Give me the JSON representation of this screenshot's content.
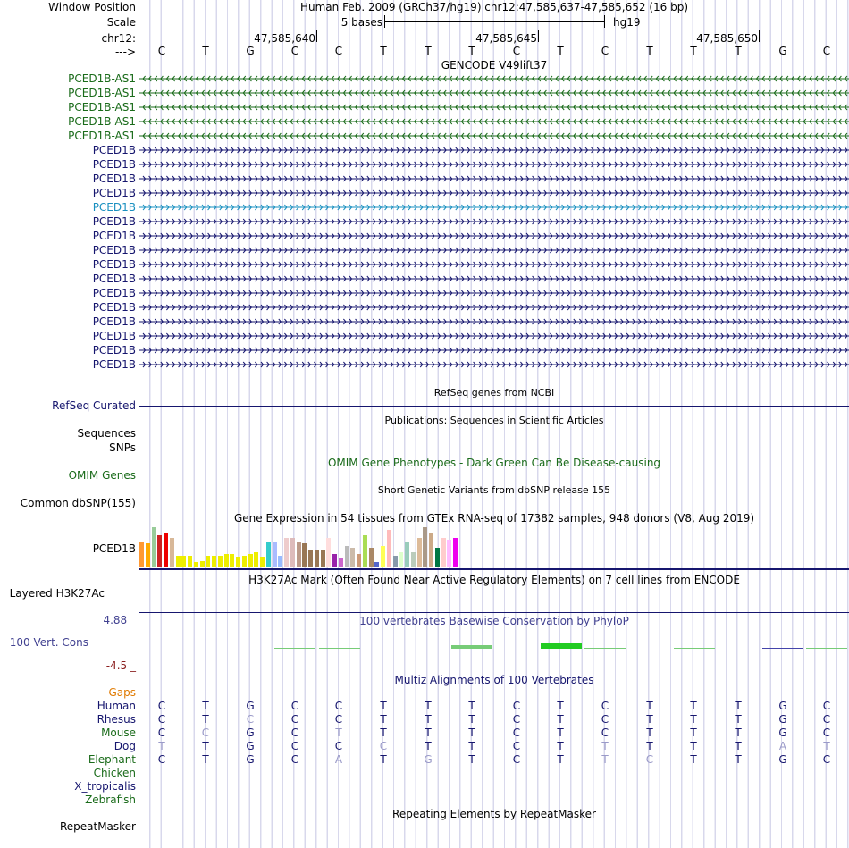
{
  "header": {
    "window_label": "Window Position",
    "window_text": "Human Feb. 2009 (GRCh37/hg19)   chr12:47,585,637-47,585,652 (16 bp)",
    "scale_label": "Scale",
    "scale_text": "5 bases",
    "scale_assembly": "hg19",
    "chrom_label": "chr12:",
    "strand_label": "--->",
    "positions": [
      "47,585,640",
      "47,585,645",
      "47,585,650"
    ]
  },
  "reference_bases": [
    "C",
    "T",
    "G",
    "C",
    "C",
    "T",
    "T",
    "T",
    "C",
    "T",
    "C",
    "T",
    "T",
    "T",
    "G",
    "C"
  ],
  "gencode": {
    "title": "GENCODE V49lift37",
    "tracks": [
      {
        "name": "PCED1B-AS1",
        "strand": "-",
        "color": "#1a6b1a"
      },
      {
        "name": "PCED1B-AS1",
        "strand": "-",
        "color": "#1a6b1a"
      },
      {
        "name": "PCED1B-AS1",
        "strand": "-",
        "color": "#1a6b1a"
      },
      {
        "name": "PCED1B-AS1",
        "strand": "-",
        "color": "#1a6b1a"
      },
      {
        "name": "PCED1B-AS1",
        "strand": "-",
        "color": "#1a6b1a"
      },
      {
        "name": "PCED1B",
        "strand": "+",
        "color": "#16166e"
      },
      {
        "name": "PCED1B",
        "strand": "+",
        "color": "#16166e"
      },
      {
        "name": "PCED1B",
        "strand": "+",
        "color": "#16166e"
      },
      {
        "name": "PCED1B",
        "strand": "+",
        "color": "#16166e"
      },
      {
        "name": "PCED1B",
        "strand": "+",
        "color": "#1a90c0"
      },
      {
        "name": "PCED1B",
        "strand": "+",
        "color": "#16166e"
      },
      {
        "name": "PCED1B",
        "strand": "+",
        "color": "#16166e"
      },
      {
        "name": "PCED1B",
        "strand": "+",
        "color": "#16166e"
      },
      {
        "name": "PCED1B",
        "strand": "+",
        "color": "#16166e"
      },
      {
        "name": "PCED1B",
        "strand": "+",
        "color": "#16166e"
      },
      {
        "name": "PCED1B",
        "strand": "+",
        "color": "#16166e"
      },
      {
        "name": "PCED1B",
        "strand": "+",
        "color": "#16166e"
      },
      {
        "name": "PCED1B",
        "strand": "+",
        "color": "#16166e"
      },
      {
        "name": "PCED1B",
        "strand": "+",
        "color": "#16166e"
      },
      {
        "name": "PCED1B",
        "strand": "+",
        "color": "#16166e"
      },
      {
        "name": "PCED1B",
        "strand": "+",
        "color": "#16166e"
      }
    ]
  },
  "refseq": {
    "title": "RefSeq genes from NCBI",
    "label": "RefSeq Curated"
  },
  "publications": {
    "title": "Publications: Sequences in Scientific Articles",
    "label_sequences": "Sequences",
    "label_snps": "SNPs"
  },
  "omim": {
    "title": "OMIM Gene Phenotypes - Dark Green Can Be Disease-causing",
    "label": "OMIM Genes"
  },
  "dbsnp": {
    "title": "Short Genetic Variants from dbSNP release 155",
    "label": "Common dbSNP(155)"
  },
  "gtex": {
    "title": "Gene Expression in 54 tissues from GTEx RNA-seq of 17382 samples, 948 donors (V8, Aug 2019)",
    "label": "PCED1B",
    "bars": [
      {
        "v": 0.62,
        "c": "#ff9933"
      },
      {
        "v": 0.58,
        "c": "#ffaa00"
      },
      {
        "v": 0.98,
        "c": "#99cc99"
      },
      {
        "v": 0.78,
        "c": "#cc2222"
      },
      {
        "v": 0.82,
        "c": "#ee0000"
      },
      {
        "v": 0.72,
        "c": "#d8b898"
      },
      {
        "v": 0.28,
        "c": "#eeee00"
      },
      {
        "v": 0.28,
        "c": "#eeee00"
      },
      {
        "v": 0.28,
        "c": "#eeee00"
      },
      {
        "v": 0.12,
        "c": "#eeee00"
      },
      {
        "v": 0.16,
        "c": "#eeee00"
      },
      {
        "v": 0.28,
        "c": "#eeee00"
      },
      {
        "v": 0.28,
        "c": "#eeee00"
      },
      {
        "v": 0.28,
        "c": "#eeee00"
      },
      {
        "v": 0.32,
        "c": "#eeee00"
      },
      {
        "v": 0.32,
        "c": "#eeee00"
      },
      {
        "v": 0.26,
        "c": "#eeee00"
      },
      {
        "v": 0.28,
        "c": "#eeee00"
      },
      {
        "v": 0.32,
        "c": "#eeee00"
      },
      {
        "v": 0.36,
        "c": "#eeee00"
      },
      {
        "v": 0.26,
        "c": "#eeee00"
      },
      {
        "v": 0.62,
        "c": "#33cccc"
      },
      {
        "v": 0.62,
        "c": "#aabbff"
      },
      {
        "v": 0.28,
        "c": "#99bbff"
      },
      {
        "v": 0.72,
        "c": "#eecccc"
      },
      {
        "v": 0.72,
        "c": "#ddbbbb"
      },
      {
        "v": 0.62,
        "c": "#bb9988"
      },
      {
        "v": 0.58,
        "c": "#997755"
      },
      {
        "v": 0.42,
        "c": "#997755"
      },
      {
        "v": 0.42,
        "c": "#997755"
      },
      {
        "v": 0.42,
        "c": "#997755"
      },
      {
        "v": 0.72,
        "c": "#ffdddd"
      },
      {
        "v": 0.32,
        "c": "#9922aa"
      },
      {
        "v": 0.22,
        "c": "#cc66cc"
      },
      {
        "v": 0.52,
        "c": "#bbbbbb"
      },
      {
        "v": 0.48,
        "c": "#ccbbaa"
      },
      {
        "v": 0.32,
        "c": "#cc9977"
      },
      {
        "v": 0.78,
        "c": "#aadd55"
      },
      {
        "v": 0.48,
        "c": "#aa8866"
      },
      {
        "v": 0.12,
        "c": "#5566cc"
      },
      {
        "v": 0.52,
        "c": "#ffff55"
      },
      {
        "v": 0.92,
        "c": "#ffbbbb"
      },
      {
        "v": 0.28,
        "c": "#8899aa"
      },
      {
        "v": 0.38,
        "c": "#ddffcc"
      },
      {
        "v": 0.62,
        "c": "#99ccbb"
      },
      {
        "v": 0.38,
        "c": "#bbccbb"
      },
      {
        "v": 0.72,
        "c": "#ddbb99"
      },
      {
        "v": 0.98,
        "c": "#aa9988"
      },
      {
        "v": 0.82,
        "c": "#ccaa88"
      },
      {
        "v": 0.48,
        "c": "#007744"
      },
      {
        "v": 0.72,
        "c": "#ffcccc"
      },
      {
        "v": 0.68,
        "c": "#ffbbff"
      },
      {
        "v": 0.72,
        "c": "#ee00ee"
      }
    ]
  },
  "h3k27ac": {
    "title": "H3K27Ac Mark (Often Found Near Active Regulatory Elements) on 7 cell lines from ENCODE",
    "label": "Layered H3K27Ac"
  },
  "phylop": {
    "title": "100 vertebrates Basewise Conservation by PhyloP",
    "label": "100 Vert. Cons",
    "max": "4.88 _",
    "min": "-4.5 _",
    "scores": [
      0.0,
      0.0,
      0.0,
      0.3,
      0.25,
      0.0,
      0.0,
      0.9,
      0.0,
      1.5,
      0.25,
      0.0,
      0.35,
      0.0,
      -0.25,
      0.3
    ]
  },
  "multiz": {
    "title": "Multiz Alignments of 100 Vertebrates",
    "gaps_label": "Gaps",
    "species": [
      {
        "name": "Human",
        "color": "#16166e",
        "bases": [
          "C",
          "T",
          "G",
          "C",
          "C",
          "T",
          "T",
          "T",
          "C",
          "T",
          "C",
          "T",
          "T",
          "T",
          "G",
          "C"
        ],
        "faint": []
      },
      {
        "name": "Rhesus",
        "color": "#16166e",
        "bases": [
          "C",
          "T",
          "C",
          "C",
          "C",
          "T",
          "T",
          "T",
          "C",
          "T",
          "C",
          "T",
          "T",
          "T",
          "G",
          "C"
        ],
        "faint": [
          2
        ]
      },
      {
        "name": "Mouse",
        "color": "#1a6b1a",
        "bases": [
          "C",
          "C",
          "G",
          "C",
          "T",
          "T",
          "T",
          "T",
          "C",
          "T",
          "C",
          "T",
          "T",
          "T",
          "G",
          "C"
        ],
        "faint": [
          1,
          4
        ]
      },
      {
        "name": "Dog",
        "color": "#16166e",
        "bases": [
          "T",
          "T",
          "G",
          "C",
          "C",
          "C",
          "T",
          "T",
          "C",
          "T",
          "T",
          "T",
          "T",
          "T",
          "A",
          "T"
        ],
        "faint": [
          0,
          5,
          10,
          14,
          15
        ]
      },
      {
        "name": "Elephant",
        "color": "#1a6b1a",
        "bases": [
          "C",
          "T",
          "G",
          "C",
          "A",
          "T",
          "G",
          "T",
          "C",
          "T",
          "T",
          "C",
          "T",
          "T",
          "G",
          "C"
        ],
        "faint": [
          4,
          6,
          10,
          11
        ]
      },
      {
        "name": "Chicken",
        "color": "#1a6b1a",
        "bases": [],
        "faint": []
      },
      {
        "name": "X_tropicalis",
        "color": "#16166e",
        "bases": [],
        "faint": []
      },
      {
        "name": "Zebrafish",
        "color": "#1a6b1a",
        "bases": [],
        "faint": []
      }
    ]
  },
  "repeatmasker": {
    "title": "Repeating Elements by RepeatMasker",
    "label": "RepeatMasker"
  }
}
